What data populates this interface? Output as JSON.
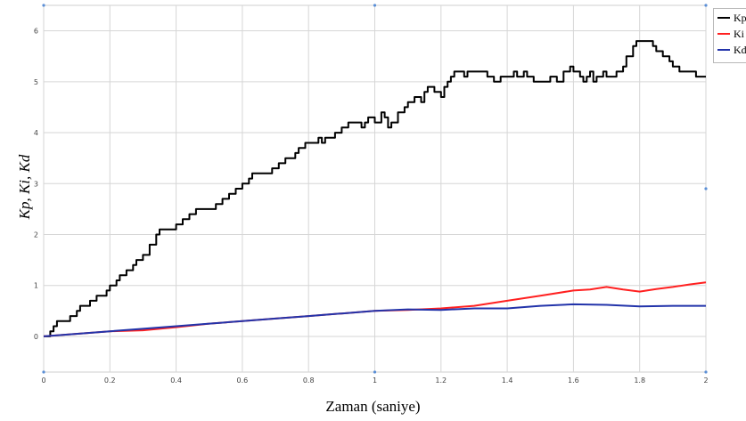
{
  "chart_data": {
    "type": "line",
    "xlabel": "Zaman (saniye)",
    "ylabel": "Kp, Ki, Kd",
    "xlim": [
      0,
      2
    ],
    "ylim": [
      -0.7,
      6.5
    ],
    "xticks": [
      "0",
      "0.2",
      "0.4",
      "0.6",
      "0.8",
      "1",
      "1.2",
      "1.4",
      "1.6",
      "1.8",
      "2"
    ],
    "yticks": [
      "0",
      "1",
      "2",
      "3",
      "4",
      "5",
      "6"
    ],
    "grid": true,
    "legend_position": "top-right",
    "series": [
      {
        "name": "Kp",
        "color": "#000000",
        "style": "step",
        "points": [
          [
            0,
            0
          ],
          [
            0.02,
            0.1
          ],
          [
            0.03,
            0.2
          ],
          [
            0.04,
            0.3
          ],
          [
            0.08,
            0.4
          ],
          [
            0.1,
            0.5
          ],
          [
            0.11,
            0.6
          ],
          [
            0.14,
            0.7
          ],
          [
            0.16,
            0.8
          ],
          [
            0.19,
            0.9
          ],
          [
            0.2,
            1.0
          ],
          [
            0.22,
            1.1
          ],
          [
            0.23,
            1.2
          ],
          [
            0.25,
            1.3
          ],
          [
            0.27,
            1.4
          ],
          [
            0.28,
            1.5
          ],
          [
            0.3,
            1.6
          ],
          [
            0.32,
            1.8
          ],
          [
            0.34,
            2.0
          ],
          [
            0.35,
            2.1
          ],
          [
            0.4,
            2.2
          ],
          [
            0.42,
            2.3
          ],
          [
            0.44,
            2.4
          ],
          [
            0.46,
            2.5
          ],
          [
            0.52,
            2.6
          ],
          [
            0.54,
            2.7
          ],
          [
            0.56,
            2.8
          ],
          [
            0.58,
            2.9
          ],
          [
            0.6,
            3.0
          ],
          [
            0.62,
            3.1
          ],
          [
            0.63,
            3.2
          ],
          [
            0.69,
            3.3
          ],
          [
            0.71,
            3.4
          ],
          [
            0.73,
            3.5
          ],
          [
            0.76,
            3.6
          ],
          [
            0.77,
            3.7
          ],
          [
            0.79,
            3.8
          ],
          [
            0.83,
            3.9
          ],
          [
            0.84,
            3.8
          ],
          [
            0.85,
            3.9
          ],
          [
            0.88,
            4.0
          ],
          [
            0.9,
            4.1
          ],
          [
            0.92,
            4.2
          ],
          [
            0.96,
            4.1
          ],
          [
            0.97,
            4.2
          ],
          [
            0.98,
            4.3
          ],
          [
            1.0,
            4.2
          ],
          [
            1.02,
            4.4
          ],
          [
            1.03,
            4.3
          ],
          [
            1.04,
            4.1
          ],
          [
            1.05,
            4.2
          ],
          [
            1.07,
            4.4
          ],
          [
            1.09,
            4.5
          ],
          [
            1.1,
            4.6
          ],
          [
            1.12,
            4.7
          ],
          [
            1.14,
            4.6
          ],
          [
            1.15,
            4.8
          ],
          [
            1.16,
            4.9
          ],
          [
            1.18,
            4.8
          ],
          [
            1.2,
            4.7
          ],
          [
            1.21,
            4.9
          ],
          [
            1.22,
            5.0
          ],
          [
            1.23,
            5.1
          ],
          [
            1.24,
            5.2
          ],
          [
            1.27,
            5.1
          ],
          [
            1.28,
            5.2
          ],
          [
            1.34,
            5.1
          ],
          [
            1.36,
            5.0
          ],
          [
            1.38,
            5.1
          ],
          [
            1.42,
            5.2
          ],
          [
            1.43,
            5.1
          ],
          [
            1.45,
            5.2
          ],
          [
            1.46,
            5.1
          ],
          [
            1.48,
            5.0
          ],
          [
            1.53,
            5.1
          ],
          [
            1.55,
            5.0
          ],
          [
            1.57,
            5.2
          ],
          [
            1.59,
            5.3
          ],
          [
            1.6,
            5.2
          ],
          [
            1.62,
            5.1
          ],
          [
            1.63,
            5.0
          ],
          [
            1.64,
            5.1
          ],
          [
            1.65,
            5.2
          ],
          [
            1.66,
            5.0
          ],
          [
            1.67,
            5.1
          ],
          [
            1.69,
            5.2
          ],
          [
            1.7,
            5.1
          ],
          [
            1.73,
            5.2
          ],
          [
            1.75,
            5.3
          ],
          [
            1.76,
            5.5
          ],
          [
            1.78,
            5.7
          ],
          [
            1.79,
            5.8
          ],
          [
            1.84,
            5.7
          ],
          [
            1.85,
            5.6
          ],
          [
            1.87,
            5.5
          ],
          [
            1.89,
            5.4
          ],
          [
            1.9,
            5.3
          ],
          [
            1.92,
            5.2
          ],
          [
            1.97,
            5.1
          ],
          [
            2.0,
            5.1
          ]
        ]
      },
      {
        "name": "Ki",
        "color": "#ff2020",
        "style": "line",
        "points": [
          [
            0,
            0
          ],
          [
            0.2,
            0.1
          ],
          [
            0.3,
            0.12
          ],
          [
            0.4,
            0.18
          ],
          [
            0.5,
            0.25
          ],
          [
            0.6,
            0.3
          ],
          [
            0.7,
            0.35
          ],
          [
            0.8,
            0.4
          ],
          [
            0.9,
            0.45
          ],
          [
            1.0,
            0.5
          ],
          [
            1.1,
            0.52
          ],
          [
            1.2,
            0.55
          ],
          [
            1.3,
            0.6
          ],
          [
            1.4,
            0.7
          ],
          [
            1.5,
            0.8
          ],
          [
            1.6,
            0.9
          ],
          [
            1.65,
            0.92
          ],
          [
            1.7,
            0.97
          ],
          [
            1.75,
            0.92
          ],
          [
            1.8,
            0.88
          ],
          [
            1.85,
            0.93
          ],
          [
            1.9,
            0.97
          ],
          [
            1.95,
            1.02
          ],
          [
            2.0,
            1.06
          ]
        ]
      },
      {
        "name": "Kd",
        "color": "#2233aa",
        "style": "line",
        "points": [
          [
            0,
            0
          ],
          [
            0.2,
            0.1
          ],
          [
            0.3,
            0.15
          ],
          [
            0.4,
            0.2
          ],
          [
            0.5,
            0.25
          ],
          [
            0.6,
            0.3
          ],
          [
            0.7,
            0.35
          ],
          [
            0.8,
            0.4
          ],
          [
            0.9,
            0.45
          ],
          [
            1.0,
            0.5
          ],
          [
            1.1,
            0.53
          ],
          [
            1.2,
            0.52
          ],
          [
            1.3,
            0.55
          ],
          [
            1.4,
            0.55
          ],
          [
            1.5,
            0.6
          ],
          [
            1.6,
            0.63
          ],
          [
            1.7,
            0.62
          ],
          [
            1.8,
            0.59
          ],
          [
            1.9,
            0.6
          ],
          [
            2.0,
            0.6
          ]
        ]
      }
    ]
  }
}
